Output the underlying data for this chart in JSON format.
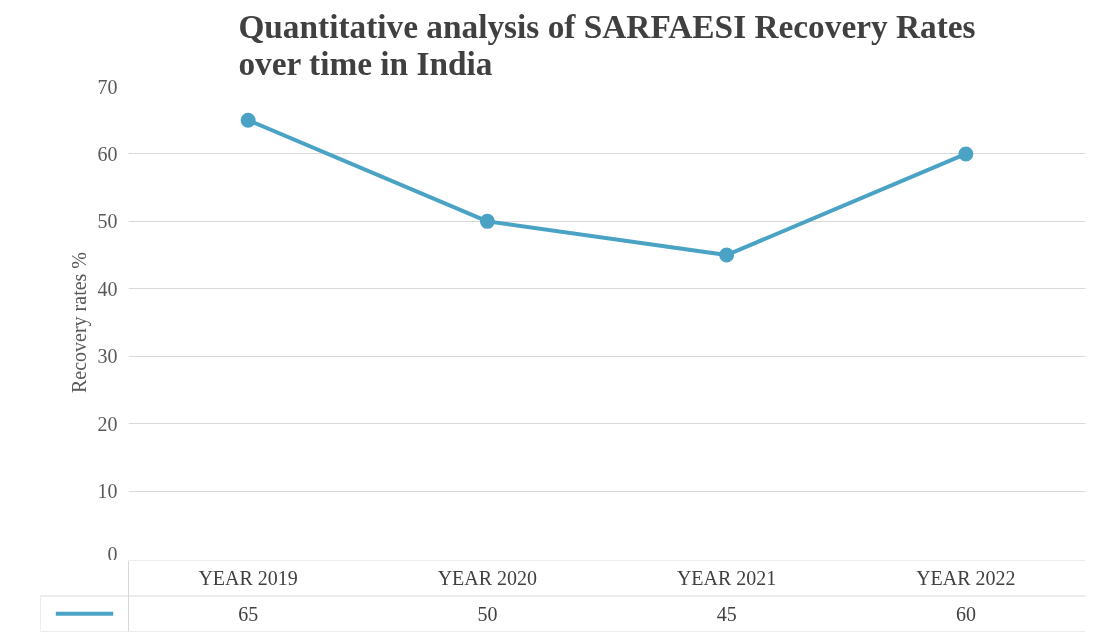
{
  "chart_data": {
    "type": "line",
    "title": "Quantitative analysis of SARFAESI Recovery Rates over time in India",
    "ylabel": "Recovery rates %",
    "categories": [
      "YEAR 2019",
      "YEAR 2020",
      "YEAR 2021",
      "YEAR 2022"
    ],
    "series": [
      {
        "color": "#4aa3c4",
        "values": [
          65,
          50,
          45,
          60
        ]
      }
    ],
    "ylim": [
      0,
      70
    ],
    "yticks": [
      0,
      10,
      20,
      30,
      40,
      50,
      60,
      70
    ],
    "grid": "y",
    "marker": "circle",
    "line_style": "solid",
    "data_labels": true
  }
}
